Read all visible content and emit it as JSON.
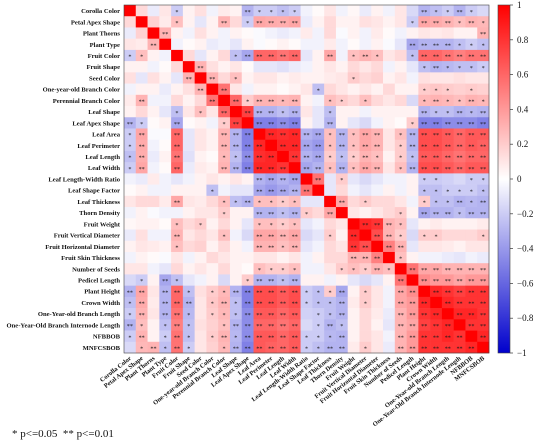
{
  "chart_data": {
    "type": "heatmap",
    "title": "",
    "variables": [
      "Corolla Color",
      "Petal Apex Shape",
      "Plant Thorns",
      "Plant Type",
      "Fruit Color",
      "Fruit Shape",
      "Seed Color",
      "One-year-old Branch Color",
      "Perennial Branch Color",
      "Leaf Shape",
      "Leaf Apex Shape",
      "Leaf Area",
      "Leaf Perimeter",
      "Leaf Length",
      "Leaf Width",
      "Leaf Length-Width Ratio",
      "Leaf Shape Factor",
      "Leaf Thickness",
      "Thorn Density",
      "Fruit Weight",
      "Fruit Vertical Diameter",
      "Fruit Horizontal Diameter",
      "Fruit Skin Thickness",
      "Number of Seeds",
      "Pedicel Length",
      "Plant Height",
      "Crown Width",
      "One-Year-old Branch Length",
      "One-Year-Old Branch Internode Length",
      "NFBBOB",
      "MNFCSBOB"
    ],
    "colorbar": {
      "min": -1,
      "max": 1,
      "ticks": [
        1,
        0.8,
        0.6,
        0.4,
        0.2,
        0,
        -0.2,
        -0.4,
        -0.6,
        -0.8,
        -1
      ]
    },
    "colors": {
      "positive": "#ff0000",
      "zero": "#ffffff",
      "negative": "#0000cc"
    },
    "values": [
      [
        1.0,
        0.15,
        -0.08,
        0.1,
        -0.2,
        0.05,
        0.12,
        -0.05,
        0.08,
        0.05,
        -0.3,
        -0.2,
        -0.2,
        -0.25,
        -0.2,
        -0.05,
        0.02,
        0.1,
        -0.05,
        0.03,
        -0.08,
        0.05,
        -0.05,
        0.1,
        -0.15,
        -0.3,
        -0.25,
        -0.2,
        -0.3,
        -0.2,
        -0.15
      ],
      [
        0.15,
        1.0,
        0.18,
        0.08,
        0.25,
        0.05,
        -0.1,
        0.05,
        0.3,
        0.15,
        -0.2,
        0.35,
        0.33,
        0.32,
        0.35,
        -0.08,
        0.05,
        0.15,
        0.05,
        0.05,
        0.12,
        0.1,
        0.05,
        0.1,
        -0.2,
        0.35,
        0.33,
        0.3,
        0.25,
        0.3,
        0.28
      ],
      [
        -0.08,
        0.18,
        1.0,
        0.3,
        0.05,
        -0.05,
        0.12,
        0.05,
        -0.05,
        0.05,
        0.02,
        -0.02,
        -0.05,
        -0.08,
        -0.05,
        0.08,
        -0.05,
        0.15,
        -0.02,
        0.05,
        -0.05,
        0.08,
        0.02,
        -0.05,
        0.05,
        0.1,
        0.08,
        0.1,
        0.05,
        0.05,
        0.3
      ],
      [
        0.1,
        0.08,
        0.3,
        1.0,
        -0.05,
        0.02,
        0.05,
        -0.08,
        -0.05,
        -0.1,
        0.05,
        -0.02,
        0.02,
        0.05,
        0.02,
        -0.05,
        -0.05,
        0.08,
        -0.05,
        0.02,
        -0.05,
        0.05,
        -0.02,
        -0.1,
        -0.35,
        -0.3,
        -0.3,
        -0.3,
        -0.25,
        -0.2,
        -0.25
      ],
      [
        -0.2,
        0.25,
        0.05,
        -0.05,
        1.0,
        0.15,
        -0.1,
        0.05,
        0.15,
        -0.25,
        -0.35,
        0.6,
        0.6,
        0.55,
        0.6,
        -0.1,
        0.05,
        0.35,
        -0.05,
        0.25,
        0.3,
        0.25,
        0.1,
        0.15,
        -0.25,
        0.6,
        0.6,
        0.55,
        0.5,
        0.55,
        0.55
      ],
      [
        0.05,
        0.05,
        -0.05,
        0.02,
        0.15,
        1.0,
        0.3,
        0.12,
        0.05,
        0.1,
        0.02,
        -0.1,
        -0.1,
        -0.12,
        -0.08,
        -0.05,
        0.05,
        0.1,
        0.05,
        0.15,
        0.1,
        0.15,
        -0.05,
        0.05,
        -0.1,
        -0.25,
        -0.3,
        -0.28,
        -0.25,
        -0.25,
        -0.2
      ],
      [
        0.12,
        -0.1,
        0.12,
        0.05,
        -0.1,
        0.3,
        1.0,
        0.3,
        0.15,
        0.25,
        0.05,
        0.1,
        0.1,
        0.05,
        0.08,
        0.05,
        0.05,
        0.08,
        0.1,
        0.2,
        0.15,
        0.18,
        0.05,
        0.1,
        -0.05,
        0.12,
        0.1,
        0.1,
        0.12,
        0.1,
        0.1
      ],
      [
        -0.05,
        0.05,
        0.05,
        -0.08,
        0.05,
        0.12,
        0.3,
        1.0,
        0.55,
        0.1,
        -0.05,
        0.05,
        0.05,
        0.02,
        0.05,
        0.1,
        -0.25,
        0.15,
        0.1,
        0.05,
        0.1,
        0.05,
        0.15,
        0.05,
        0.05,
        0.2,
        0.22,
        0.2,
        0.18,
        0.2,
        0.18
      ],
      [
        0.08,
        0.3,
        -0.05,
        -0.05,
        0.15,
        0.05,
        0.15,
        0.55,
        1.0,
        0.6,
        0.2,
        0.3,
        0.3,
        0.28,
        0.3,
        0.05,
        -0.05,
        0.25,
        0.2,
        0.15,
        0.25,
        0.15,
        0.1,
        0.15,
        -0.15,
        0.28,
        0.3,
        0.28,
        0.25,
        0.3,
        0.28
      ],
      [
        0.05,
        0.15,
        0.05,
        -0.1,
        -0.25,
        0.1,
        0.25,
        0.1,
        0.6,
        1.0,
        0.75,
        -0.3,
        -0.3,
        -0.25,
        -0.3,
        0.1,
        -0.1,
        -0.25,
        0.05,
        0.05,
        -0.05,
        0.05,
        0.05,
        0.05,
        0.05,
        -0.3,
        -0.25,
        -0.25,
        -0.3,
        -0.28,
        -0.3
      ],
      [
        -0.3,
        -0.2,
        0.02,
        0.05,
        -0.35,
        0.02,
        0.05,
        -0.05,
        0.2,
        0.75,
        1.0,
        -0.5,
        -0.5,
        -0.45,
        -0.5,
        0.05,
        -0.1,
        -0.3,
        0.05,
        -0.1,
        -0.15,
        -0.05,
        0.05,
        0.02,
        0.2,
        -0.5,
        -0.5,
        -0.45,
        -0.45,
        -0.45,
        -0.5
      ],
      [
        -0.2,
        0.35,
        -0.02,
        -0.02,
        0.6,
        -0.1,
        0.1,
        0.05,
        0.3,
        -0.3,
        -0.5,
        1.0,
        0.85,
        0.82,
        0.85,
        -0.3,
        -0.35,
        0.25,
        -0.3,
        0.25,
        0.35,
        0.3,
        0.1,
        0.25,
        -0.3,
        0.7,
        0.7,
        0.65,
        0.6,
        0.65,
        0.65
      ],
      [
        -0.2,
        0.33,
        -0.05,
        0.02,
        0.6,
        -0.1,
        0.1,
        0.05,
        0.3,
        -0.3,
        -0.5,
        0.85,
        1.0,
        0.85,
        0.85,
        -0.35,
        -0.4,
        0.25,
        -0.3,
        0.25,
        0.35,
        0.3,
        0.1,
        0.2,
        -0.3,
        0.7,
        0.7,
        0.65,
        0.6,
        0.65,
        0.62
      ],
      [
        -0.25,
        0.32,
        -0.08,
        0.05,
        0.55,
        -0.12,
        0.05,
        0.02,
        0.28,
        -0.25,
        -0.45,
        0.82,
        0.85,
        1.0,
        0.8,
        -0.3,
        -0.35,
        0.2,
        -0.25,
        0.2,
        0.3,
        0.25,
        0.05,
        0.2,
        -0.25,
        0.65,
        0.65,
        0.6,
        0.55,
        0.6,
        0.6
      ],
      [
        -0.2,
        0.35,
        -0.05,
        0.02,
        0.6,
        -0.08,
        0.08,
        0.05,
        0.3,
        -0.3,
        -0.5,
        0.85,
        0.85,
        0.8,
        1.0,
        -0.35,
        -0.3,
        0.25,
        -0.3,
        0.25,
        0.35,
        0.3,
        0.1,
        0.25,
        -0.3,
        0.7,
        0.7,
        0.65,
        0.6,
        0.65,
        0.65
      ],
      [
        -0.05,
        -0.08,
        0.08,
        -0.05,
        -0.1,
        -0.05,
        0.05,
        0.1,
        0.05,
        0.1,
        0.05,
        -0.3,
        -0.35,
        -0.3,
        -0.35,
        1.0,
        0.55,
        -0.1,
        0.2,
        -0.1,
        -0.15,
        -0.1,
        -0.05,
        -0.05,
        0.05,
        -0.2,
        -0.2,
        -0.18,
        -0.15,
        -0.2,
        -0.2
      ],
      [
        0.02,
        0.05,
        -0.05,
        -0.05,
        0.05,
        0.05,
        0.05,
        -0.25,
        -0.05,
        -0.1,
        -0.1,
        -0.35,
        -0.4,
        -0.35,
        -0.3,
        0.55,
        1.0,
        -0.1,
        0.15,
        -0.05,
        -0.1,
        -0.05,
        0.05,
        -0.05,
        0.05,
        -0.25,
        -0.25,
        -0.2,
        -0.2,
        -0.2,
        -0.25
      ],
      [
        0.1,
        0.15,
        0.15,
        0.08,
        0.35,
        0.1,
        0.08,
        0.15,
        0.25,
        -0.25,
        -0.3,
        0.25,
        0.25,
        0.2,
        0.25,
        -0.1,
        -0.1,
        1.0,
        0.35,
        0.15,
        0.2,
        0.15,
        0.15,
        0.1,
        -0.05,
        0.2,
        -0.25,
        -0.25,
        -0.3,
        -0.28,
        -0.3
      ],
      [
        -0.05,
        0.05,
        -0.02,
        -0.05,
        -0.05,
        0.05,
        0.1,
        0.1,
        0.2,
        0.05,
        0.05,
        -0.3,
        -0.3,
        -0.25,
        -0.3,
        0.2,
        0.15,
        0.35,
        1.0,
        0.1,
        0.05,
        0.1,
        0.15,
        0.2,
        0.05,
        -0.35,
        -0.3,
        -0.3,
        -0.25,
        -0.3,
        -0.3
      ],
      [
        0.03,
        0.05,
        0.05,
        0.02,
        0.25,
        0.15,
        0.2,
        0.05,
        0.15,
        0.05,
        -0.1,
        0.25,
        0.25,
        0.2,
        0.25,
        -0.1,
        -0.05,
        0.15,
        0.1,
        1.0,
        0.85,
        0.8,
        0.3,
        0.25,
        -0.1,
        0.05,
        0.08,
        0.05,
        0.05,
        0.05,
        0.08
      ],
      [
        -0.08,
        0.12,
        -0.05,
        -0.05,
        0.3,
        0.1,
        0.15,
        0.1,
        0.25,
        -0.05,
        -0.15,
        0.35,
        0.35,
        0.3,
        0.35,
        -0.15,
        -0.1,
        0.2,
        0.05,
        0.85,
        1.0,
        0.7,
        0.3,
        0.2,
        -0.15,
        0.2,
        0.2,
        0.15,
        0.15,
        0.15,
        0.2
      ],
      [
        0.05,
        0.1,
        0.08,
        0.05,
        0.25,
        0.15,
        0.18,
        0.05,
        0.15,
        0.05,
        -0.05,
        0.3,
        0.3,
        0.25,
        0.3,
        -0.1,
        -0.05,
        0.15,
        0.1,
        0.8,
        0.7,
        1.0,
        0.5,
        0.3,
        -0.1,
        0.1,
        0.1,
        0.08,
        0.05,
        0.1,
        0.1
      ],
      [
        -0.05,
        0.05,
        0.02,
        -0.02,
        0.1,
        -0.05,
        0.05,
        0.15,
        0.1,
        0.05,
        0.05,
        0.1,
        0.1,
        0.05,
        0.1,
        -0.05,
        0.05,
        0.15,
        0.15,
        0.3,
        0.3,
        0.5,
        1.0,
        0.25,
        0.05,
        -0.05,
        -0.05,
        -0.08,
        -0.1,
        -0.05,
        -0.08
      ],
      [
        0.1,
        0.1,
        -0.05,
        -0.1,
        0.15,
        0.05,
        0.1,
        0.05,
        0.15,
        0.05,
        0.02,
        0.25,
        0.2,
        0.2,
        0.25,
        -0.05,
        -0.05,
        0.1,
        0.2,
        0.25,
        0.2,
        0.3,
        0.25,
        1.0,
        0.55,
        0.35,
        0.35,
        0.3,
        0.3,
        0.3,
        0.3
      ],
      [
        -0.15,
        -0.2,
        0.05,
        -0.35,
        -0.25,
        -0.1,
        -0.05,
        0.05,
        -0.15,
        0.05,
        0.2,
        -0.3,
        -0.3,
        -0.25,
        -0.3,
        0.05,
        0.05,
        -0.05,
        0.05,
        -0.1,
        -0.15,
        -0.1,
        0.05,
        0.55,
        1.0,
        0.45,
        0.4,
        0.4,
        0.35,
        0.4,
        0.4
      ],
      [
        -0.3,
        0.35,
        0.1,
        -0.3,
        0.6,
        -0.25,
        0.12,
        0.2,
        0.28,
        -0.3,
        -0.5,
        0.7,
        0.7,
        0.65,
        0.7,
        -0.2,
        -0.25,
        0.2,
        -0.35,
        0.05,
        0.2,
        0.1,
        -0.05,
        0.35,
        0.45,
        1.0,
        0.85,
        0.8,
        0.75,
        0.8,
        0.8
      ],
      [
        -0.25,
        0.33,
        0.08,
        -0.3,
        0.6,
        -0.3,
        0.1,
        0.22,
        0.3,
        -0.25,
        -0.5,
        0.7,
        0.7,
        0.65,
        0.7,
        -0.2,
        -0.25,
        -0.25,
        -0.3,
        0.08,
        0.2,
        0.1,
        -0.05,
        0.35,
        0.4,
        0.85,
        1.0,
        0.85,
        0.8,
        0.8,
        0.8
      ],
      [
        -0.2,
        0.3,
        0.1,
        -0.3,
        0.55,
        -0.28,
        0.1,
        0.2,
        0.28,
        -0.25,
        -0.45,
        0.65,
        0.65,
        0.6,
        0.65,
        -0.18,
        -0.2,
        -0.25,
        -0.3,
        0.05,
        0.15,
        0.08,
        -0.08,
        0.3,
        0.4,
        0.8,
        0.85,
        1.0,
        0.85,
        0.85,
        0.8
      ],
      [
        -0.3,
        0.25,
        0.05,
        -0.25,
        0.5,
        -0.25,
        0.12,
        0.18,
        0.25,
        -0.3,
        -0.45,
        0.6,
        0.6,
        0.55,
        0.6,
        -0.15,
        -0.2,
        -0.3,
        -0.25,
        0.05,
        0.15,
        0.05,
        -0.1,
        0.3,
        0.35,
        0.75,
        0.8,
        0.85,
        1.0,
        0.8,
        0.8
      ],
      [
        -0.2,
        0.3,
        0.05,
        -0.2,
        0.55,
        -0.25,
        0.1,
        0.2,
        0.3,
        -0.28,
        -0.45,
        0.65,
        0.65,
        0.6,
        0.65,
        -0.2,
        -0.2,
        -0.28,
        -0.3,
        0.05,
        0.15,
        0.1,
        -0.05,
        0.3,
        0.4,
        0.8,
        0.8,
        0.85,
        0.8,
        1.0,
        0.85
      ],
      [
        -0.15,
        0.28,
        0.3,
        -0.25,
        0.55,
        -0.2,
        0.1,
        0.18,
        0.28,
        -0.3,
        -0.5,
        0.65,
        0.62,
        0.6,
        0.65,
        -0.2,
        -0.25,
        -0.3,
        -0.3,
        0.08,
        0.2,
        0.1,
        -0.08,
        0.3,
        0.4,
        0.8,
        0.8,
        0.8,
        0.8,
        0.85,
        1.0
      ]
    ]
  },
  "footnote": "* p<=0.05  ** p<=0.01"
}
